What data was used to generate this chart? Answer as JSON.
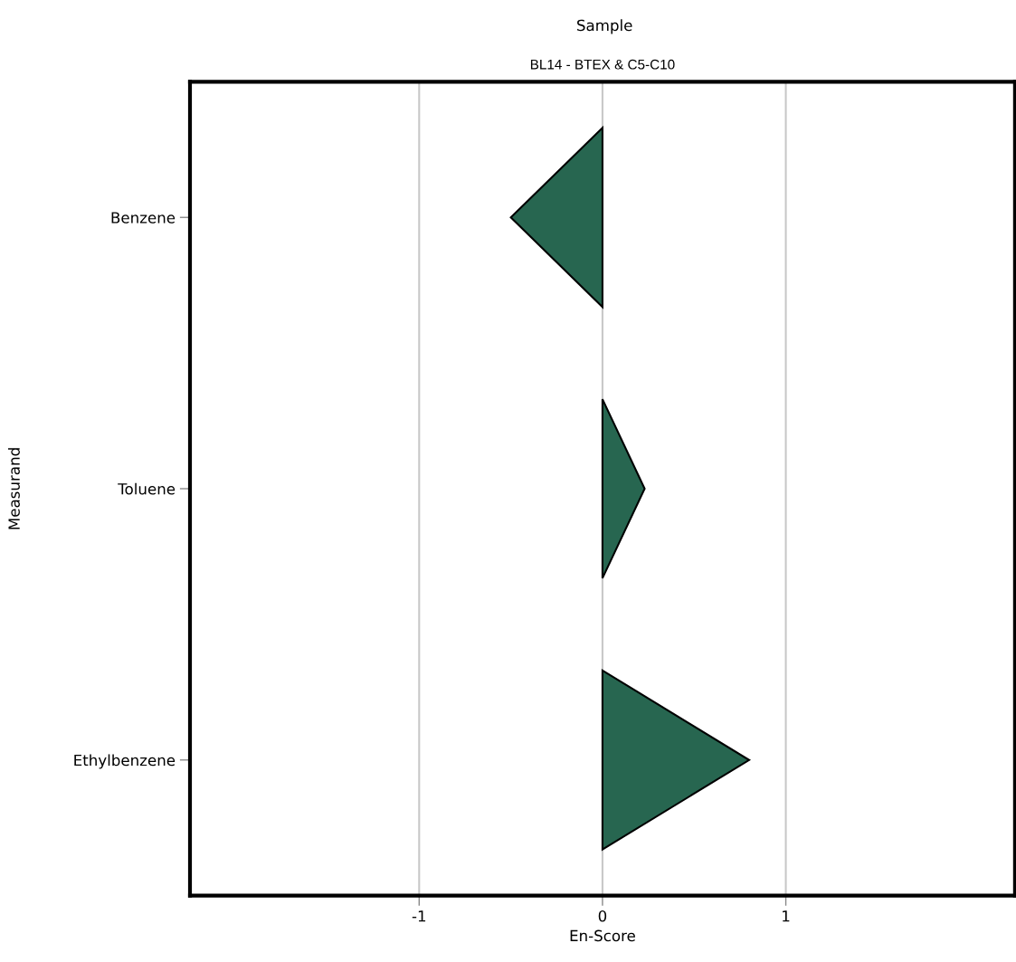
{
  "chart_data": {
    "type": "bar",
    "orientation": "horizontal",
    "title": "Sample",
    "subtitle": "BL14 - BTEX & C5-C10",
    "xlabel": "En-Score",
    "ylabel": "Measurand",
    "categories": [
      "Benzene",
      "Toluene",
      "Ethylbenzene"
    ],
    "values": [
      -0.5,
      0.23,
      0.8
    ],
    "color": "#276650",
    "xlim": [
      -2.25,
      2.25
    ],
    "xticks": [
      {
        "value": -1,
        "label": "-1"
      },
      0,
      1
    ],
    "grid": "x",
    "legend": false
  }
}
